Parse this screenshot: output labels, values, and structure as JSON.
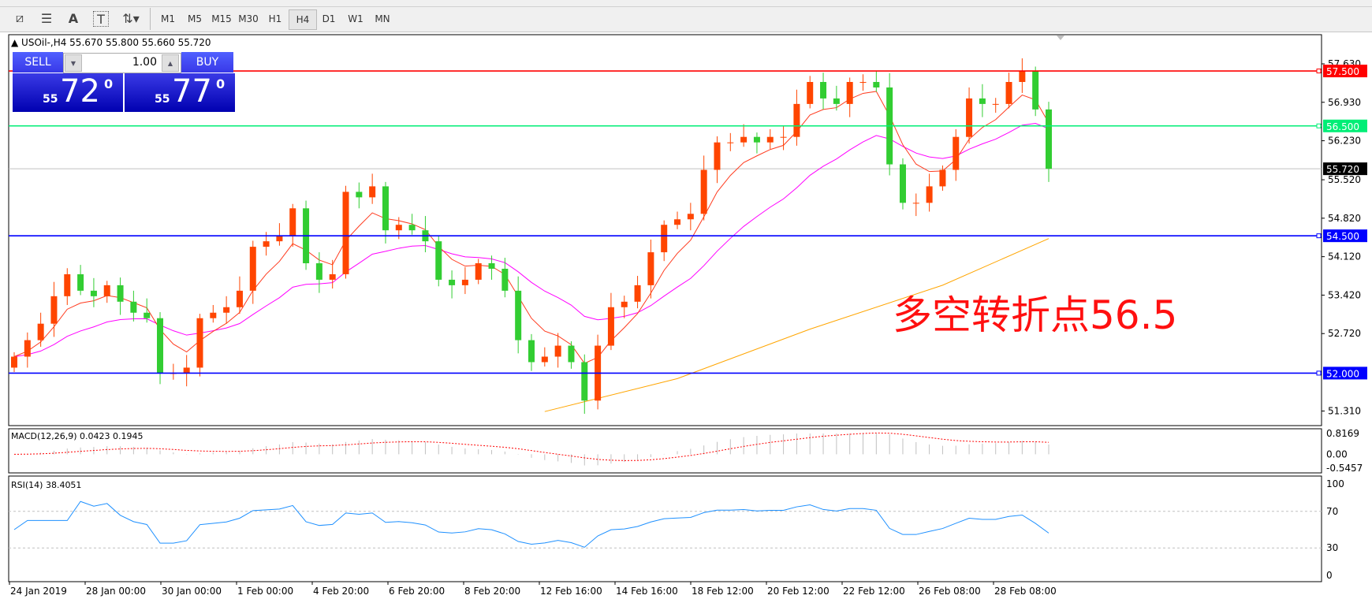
{
  "toolbar": {
    "tools": [
      {
        "name": "elliott-wave-icon",
        "glyph": "⧄"
      },
      {
        "name": "fibonacci-icon",
        "glyph": "☰"
      },
      {
        "name": "text-icon",
        "glyph": "A"
      },
      {
        "name": "text-label-icon",
        "glyph": "T"
      },
      {
        "name": "arrows-icon",
        "glyph": "⇅▾"
      }
    ],
    "timeframes": [
      "M1",
      "M5",
      "M15",
      "M30",
      "H1",
      "H4",
      "D1",
      "W1",
      "MN"
    ],
    "active_timeframe": "H4"
  },
  "chart": {
    "header": "▲ USOil-,H4  55.670 55.800 55.660 55.720",
    "trade_panel": {
      "sell_label": "SELL",
      "buy_label": "BUY",
      "lot": "1.00",
      "sell_price": {
        "prefix": "55",
        "main": "72",
        "sup": "0"
      },
      "buy_price": {
        "prefix": "55",
        "main": "77",
        "sup": "0"
      }
    },
    "annotation": "多空转折点56.5",
    "colors": {
      "up": "#ff4500",
      "down": "#32cd32",
      "ma_fast": "#ff3b1f",
      "ma_mid": "#ff00ff",
      "ma_slow": "#ffa500",
      "rsi": "#1e90ff",
      "macd_signal": "#ff0000",
      "macd_hist": "#c0c0c0"
    }
  },
  "chart_data": {
    "type": "candlestick",
    "symbol": "USOil-",
    "timeframe": "H4",
    "price_axis_ticks": [
      "57.630",
      "56.930",
      "56.230",
      "55.520",
      "54.820",
      "54.120",
      "53.420",
      "52.720",
      "51.310"
    ],
    "ylim": [
      51.0,
      57.9
    ],
    "horizontal_lines": [
      {
        "value": 57.5,
        "label": "57.500",
        "color": "#ff0000"
      },
      {
        "value": 56.5,
        "label": "56.500",
        "color": "#00ee76"
      },
      {
        "value": 54.5,
        "label": "54.500",
        "color": "#0000ff"
      },
      {
        "value": 52.0,
        "label": "52.000",
        "color": "#0000ff"
      }
    ],
    "current_price": {
      "value": 55.72,
      "label": "55.720"
    },
    "closes": [
      52.3,
      52.6,
      52.9,
      53.4,
      53.8,
      53.5,
      53.4,
      53.6,
      53.3,
      53.1,
      53.0,
      52.0,
      52.0,
      52.1,
      53.0,
      53.1,
      53.2,
      53.5,
      54.3,
      54.4,
      54.5,
      55.0,
      54.0,
      53.7,
      53.8,
      55.3,
      55.2,
      55.4,
      54.6,
      54.7,
      54.6,
      54.4,
      53.7,
      53.6,
      53.7,
      54.0,
      53.9,
      53.5,
      52.6,
      52.2,
      52.3,
      52.5,
      52.2,
      51.5,
      52.5,
      53.2,
      53.3,
      53.6,
      54.2,
      54.7,
      54.8,
      54.9,
      55.7,
      56.2,
      56.2,
      56.3,
      56.2,
      56.3,
      56.3,
      56.9,
      57.3,
      57.0,
      56.9,
      57.3,
      57.3,
      57.2,
      55.8,
      55.1,
      55.1,
      55.4,
      55.7,
      56.3,
      57.0,
      56.9,
      56.9,
      57.3,
      57.5,
      56.8,
      55.72
    ],
    "ma_slow_points": [
      [
        40,
        51.3
      ],
      [
        50,
        51.9
      ],
      [
        60,
        52.8
      ],
      [
        70,
        53.6
      ],
      [
        78,
        54.45
      ]
    ],
    "date_labels": [
      "24 Jan 2019",
      "28 Jan 00:00",
      "30 Jan 00:00",
      "1 Feb 00:00",
      "4 Feb 20:00",
      "6 Feb 20:00",
      "8 Feb 20:00",
      "12 Feb 16:00",
      "14 Feb 16:00",
      "18 Feb 12:00",
      "20 Feb 12:00",
      "22 Feb 12:00",
      "26 Feb 08:00",
      "28 Feb 08:00"
    ],
    "macd": {
      "label": "MACD(12,26,9) 0.0423 0.1945",
      "ticks": [
        "0.8169",
        "0.00",
        "-0.5457"
      ],
      "range": [
        -0.5457,
        0.8169
      ]
    },
    "rsi": {
      "label": "RSI(14) 38.4051",
      "ticks": [
        "100",
        "70",
        "30",
        "0"
      ],
      "levels": [
        70,
        30
      ]
    }
  }
}
